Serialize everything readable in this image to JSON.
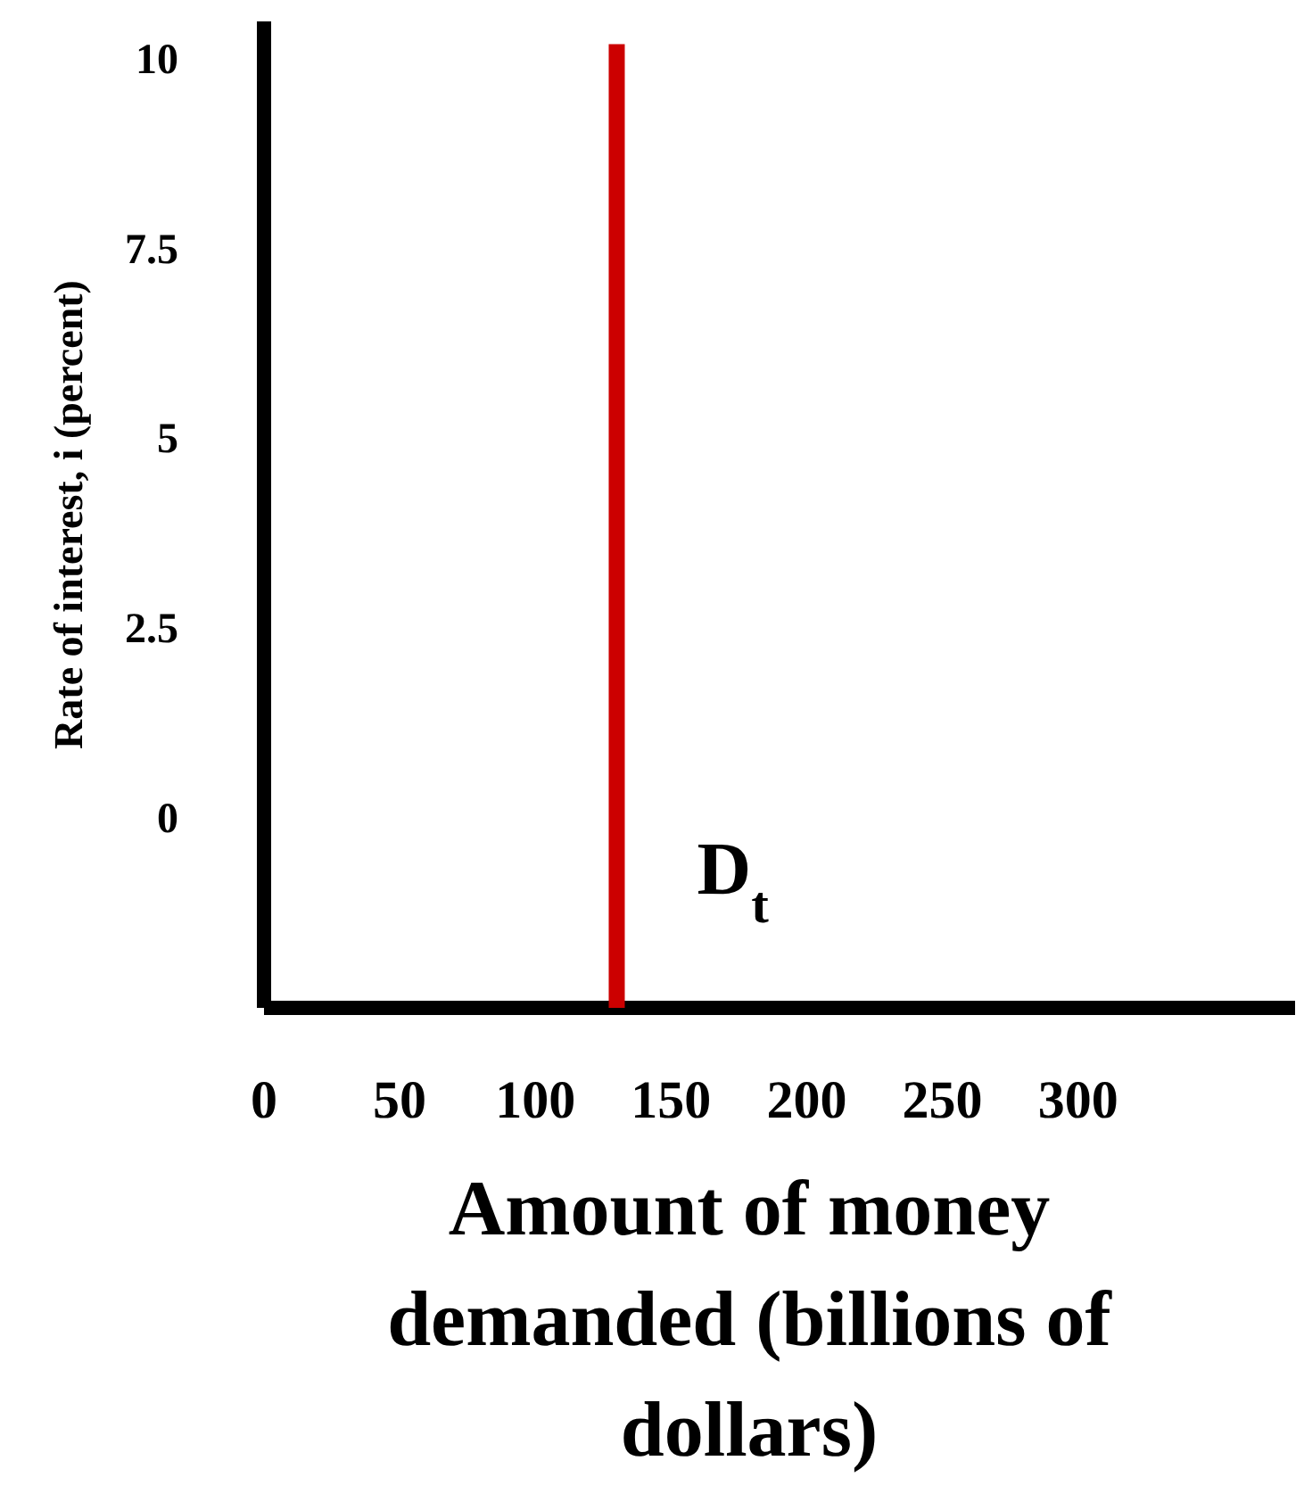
{
  "chart_data": {
    "type": "line",
    "xlabel": "Amount of money demanded (billions of dollars)",
    "ylabel": "Rate of interest, i (percent)",
    "xlim": [
      0,
      380
    ],
    "xticks": [
      0,
      50,
      100,
      150,
      200,
      250,
      300
    ],
    "ylim": [
      -2.5,
      10.5
    ],
    "yticks": [
      0,
      2.5,
      5,
      7.5,
      10
    ],
    "series": [
      {
        "name": "D$_{t}$",
        "color": "#cc0000",
        "x": [
          130,
          130
        ],
        "values": [
          -2.5,
          10.2
        ]
      }
    ],
    "grid": false,
    "marker": "none",
    "line_style": "solid"
  }
}
